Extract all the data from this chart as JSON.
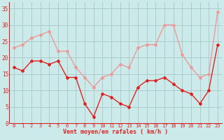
{
  "hours": [
    0,
    1,
    2,
    3,
    4,
    5,
    6,
    7,
    8,
    9,
    10,
    11,
    12,
    13,
    14,
    15,
    16,
    17,
    18,
    19,
    20,
    21,
    22,
    23
  ],
  "wind_mean": [
    17,
    16,
    19,
    19,
    18,
    19,
    14,
    14,
    6,
    2,
    9,
    8,
    6,
    5,
    11,
    13,
    13,
    14,
    12,
    10,
    9,
    6,
    10,
    24
  ],
  "wind_gusts": [
    23,
    24,
    26,
    27,
    28,
    22,
    22,
    17,
    14,
    11,
    14,
    15,
    18,
    17,
    23,
    24,
    24,
    30,
    30,
    21,
    17,
    14,
    15,
    34
  ],
  "bg_color": "#cceaea",
  "grid_color": "#aacccc",
  "mean_color": "#dd2222",
  "gust_color": "#ee9999",
  "xlabel": "Vent moyen/en rafales ( km/h )",
  "ylabel_ticks": [
    0,
    5,
    10,
    15,
    20,
    25,
    30,
    35
  ],
  "ylim": [
    0,
    37
  ],
  "xlim": [
    -0.5,
    23.5
  ]
}
